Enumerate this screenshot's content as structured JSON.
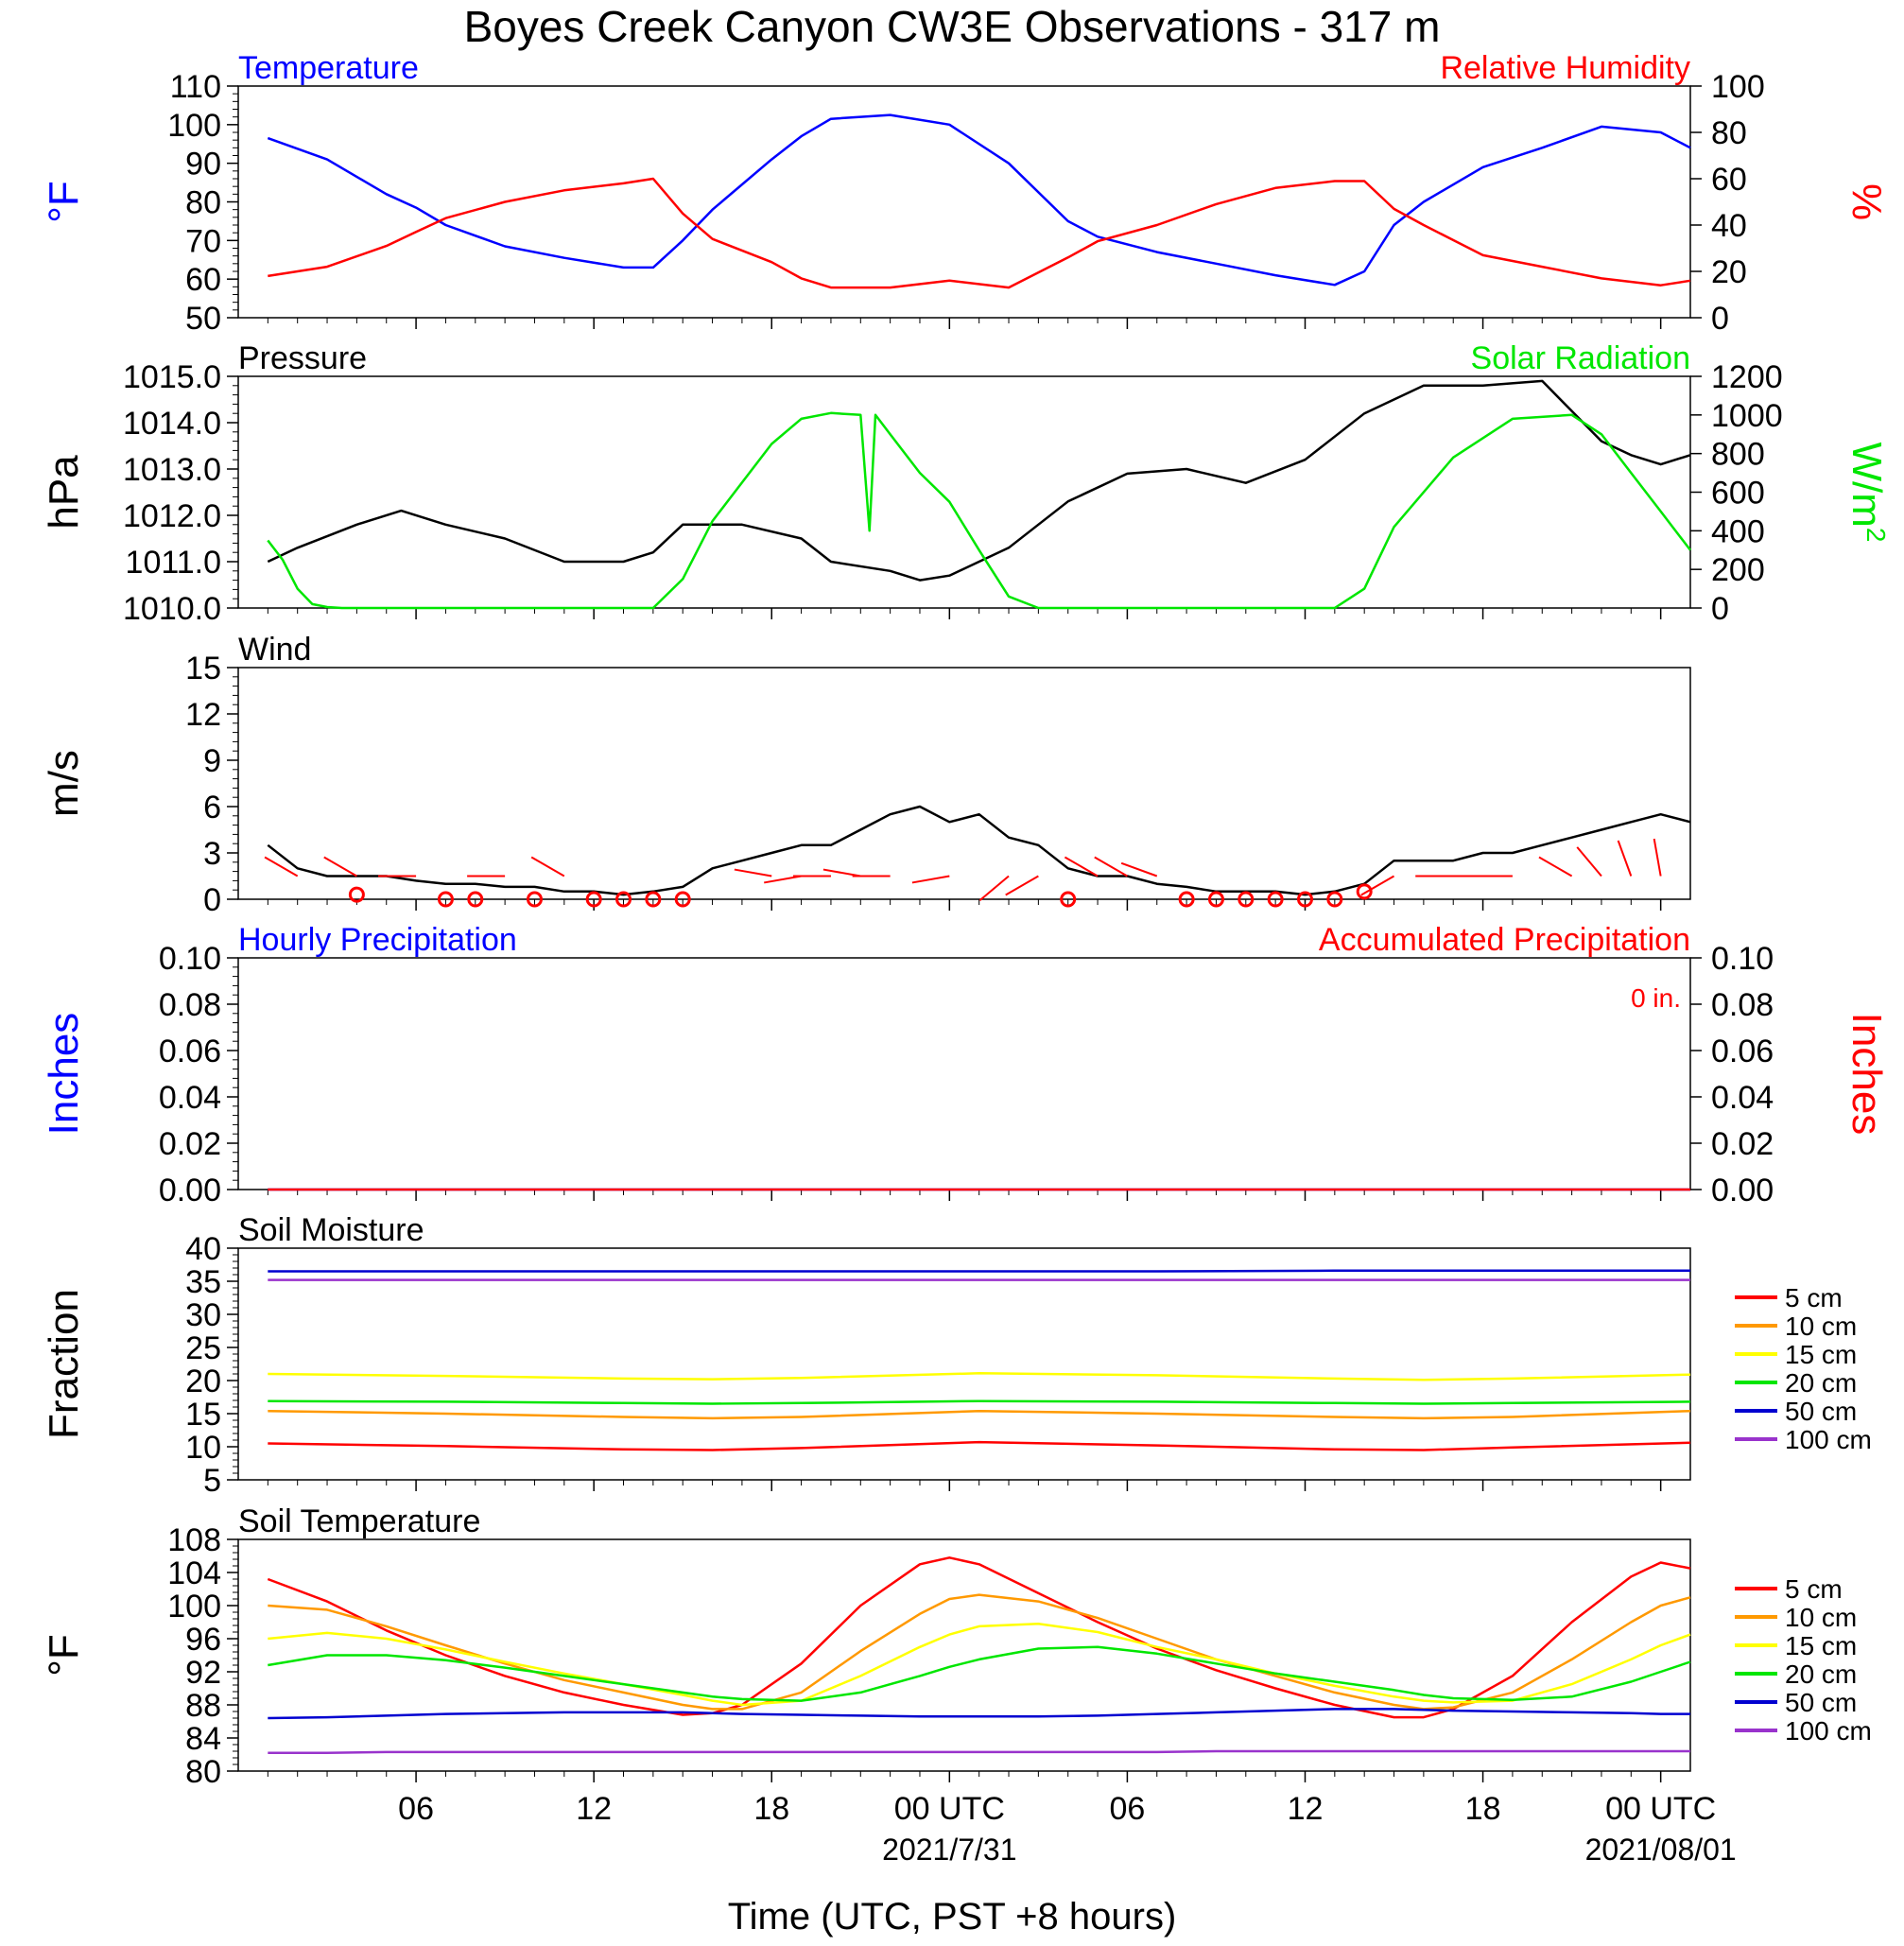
{
  "title": "Boyes Creek Canyon CW3E Observations - 317 m",
  "xlabel": "Time (UTC, PST +8 hours)",
  "x_ticks": [
    "06",
    "12",
    "18",
    "00 UTC",
    "06",
    "12",
    "18",
    "00 UTC"
  ],
  "x_dates": [
    "2021/7/31",
    "2021/08/01"
  ],
  "colors": {
    "blue": "#0000ff",
    "red": "#ff0000",
    "green": "#00e600",
    "black": "#000000",
    "orange": "#ff9900",
    "yellow": "#ffff00",
    "navy": "#0000d0",
    "purple": "#9933cc"
  },
  "chart_data": [
    {
      "id": "temp_rh",
      "type": "line",
      "title_left": "Temperature",
      "title_right": "Relative Humidity",
      "ylabel_left": "°F",
      "ylabel_right": "%",
      "ylim_left": [
        50,
        110
      ],
      "yticks_left": [
        "50",
        "60",
        "70",
        "80",
        "90",
        "100",
        "110"
      ],
      "ylim_right": [
        0,
        100
      ],
      "yticks_right": [
        "0",
        "20",
        "40",
        "60",
        "80",
        "100"
      ],
      "x_hours": [
        1,
        3,
        5,
        6,
        7,
        9,
        11,
        13,
        14,
        15,
        16,
        18,
        19,
        20,
        22,
        24,
        26,
        28,
        29,
        31,
        33,
        35,
        37,
        38,
        39,
        40,
        42,
        44,
        46,
        48,
        49
      ],
      "series": [
        {
          "name": "Temperature",
          "axis": "left",
          "color": "blue",
          "values": [
            96.5,
            91,
            82,
            78.5,
            74,
            68.5,
            65.5,
            63,
            63,
            70,
            78,
            91,
            97,
            101.5,
            102.5,
            100,
            90,
            75,
            71,
            67,
            64,
            61,
            58.5,
            62,
            74,
            80,
            89,
            94,
            99.5,
            98,
            94
          ]
        },
        {
          "name": "Relative Humidity",
          "axis": "right",
          "color": "red",
          "values": [
            18,
            22,
            31,
            37,
            43,
            50,
            55,
            58,
            60,
            45,
            34,
            24,
            17,
            13,
            13,
            16,
            13,
            26,
            33,
            40,
            49,
            56,
            59,
            59,
            47,
            40,
            27,
            22,
            17,
            14,
            16
          ]
        }
      ]
    },
    {
      "id": "pressure_solar",
      "type": "line",
      "title_left": "Pressure",
      "title_right": "Solar Radiation",
      "ylabel_left": "hPa",
      "ylabel_right": "W/m",
      "ylabel_right_sup": "2",
      "ylim_left": [
        1010,
        1015
      ],
      "yticks_left": [
        "1010.0",
        "1011.0",
        "1012.0",
        "1013.0",
        "1014.0",
        "1015.0"
      ],
      "ylim_right": [
        0,
        1200
      ],
      "yticks_right": [
        "0",
        "200",
        "400",
        "600",
        "800",
        "1000",
        "1200"
      ],
      "series": [
        {
          "name": "Pressure",
          "axis": "left",
          "color": "black",
          "x": [
            1,
            2,
            4,
            5.5,
            7,
            9,
            11,
            13,
            14,
            15,
            17,
            19,
            20,
            22,
            23,
            24,
            26,
            28,
            30,
            32,
            34,
            36,
            38,
            40,
            42,
            44,
            46,
            47,
            48,
            49
          ],
          "values": [
            1011.0,
            1011.3,
            1011.8,
            1012.1,
            1011.8,
            1011.5,
            1011.0,
            1011.0,
            1011.2,
            1011.8,
            1011.8,
            1011.5,
            1011.0,
            1010.8,
            1010.6,
            1010.7,
            1011.3,
            1012.3,
            1012.9,
            1013.0,
            1012.7,
            1013.2,
            1014.2,
            1014.8,
            1014.8,
            1014.9,
            1013.6,
            1013.3,
            1013.1,
            1013.3
          ]
        },
        {
          "name": "Solar Radiation",
          "axis": "right",
          "color": "green",
          "x": [
            1,
            1.5,
            2,
            2.5,
            3,
            3.5,
            14,
            15,
            16,
            18,
            19,
            20,
            21,
            21.3,
            21.5,
            22,
            23,
            24,
            25,
            26,
            27,
            37,
            38,
            39,
            41,
            43,
            45,
            46,
            47,
            48,
            49
          ],
          "values": [
            350,
            250,
            100,
            20,
            5,
            0,
            0,
            150,
            450,
            850,
            980,
            1010,
            1000,
            400,
            1000,
            900,
            700,
            550,
            300,
            60,
            0,
            0,
            100,
            420,
            780,
            980,
            1000,
            900,
            700,
            500,
            300
          ]
        }
      ]
    },
    {
      "id": "wind",
      "type": "line",
      "title_left": "Wind",
      "ylabel_left": "m/s",
      "ylim_left": [
        0,
        15
      ],
      "yticks_left": [
        "0",
        "3",
        "6",
        "9",
        "12",
        "15"
      ],
      "series": [
        {
          "name": "Wind",
          "axis": "left",
          "color": "black",
          "x": [
            1,
            2,
            3,
            4,
            5,
            6,
            7,
            8,
            9,
            10,
            11,
            12,
            13,
            14,
            15,
            16,
            17,
            18,
            19,
            20,
            21,
            22,
            23,
            24,
            25,
            26,
            27,
            28,
            29,
            30,
            31,
            32,
            33,
            34,
            35,
            36,
            37,
            38,
            39,
            40,
            41,
            42,
            43,
            44,
            45,
            46,
            47,
            48,
            49
          ],
          "values": [
            3.5,
            2.0,
            1.5,
            1.5,
            1.5,
            1.2,
            1.0,
            1.0,
            0.8,
            0.8,
            0.5,
            0.5,
            0.3,
            0.5,
            0.8,
            2.0,
            2.5,
            3.0,
            3.5,
            3.5,
            4.5,
            5.5,
            6.0,
            5.0,
            5.5,
            4.0,
            3.5,
            2.0,
            1.5,
            1.5,
            1.0,
            0.8,
            0.5,
            0.5,
            0.5,
            0.3,
            0.5,
            1.0,
            2.5,
            2.5,
            2.5,
            3.0,
            3.0,
            3.5,
            4.0,
            4.5,
            5.0,
            5.5,
            5.0
          ]
        },
        {
          "name": "calm",
          "type": "scatter",
          "color": "red",
          "x": [
            4,
            7,
            8,
            10,
            12,
            13,
            14,
            15,
            28,
            32,
            33,
            34,
            35,
            36,
            37,
            38
          ],
          "values": [
            0.3,
            0,
            0,
            0,
            0,
            0,
            0,
            0,
            0,
            0,
            0,
            0,
            0,
            0,
            0,
            0.5
          ]
        }
      ],
      "barbs": {
        "x": [
          2,
          4,
          6,
          9,
          11,
          18,
          19,
          20,
          21,
          22,
          24,
          26,
          27,
          29,
          30,
          31,
          39,
          41,
          42,
          43,
          45,
          46,
          47,
          48
        ],
        "dir_deg": [
          300,
          300,
          270,
          270,
          300,
          280,
          260,
          270,
          280,
          270,
          260,
          230,
          240,
          300,
          300,
          290,
          240,
          270,
          270,
          270,
          300,
          320,
          340,
          350
        ]
      }
    },
    {
      "id": "precip",
      "type": "line",
      "title_left": "Hourly Precipitation",
      "title_right": "Accumulated Precipitation",
      "annotation": "0 in.",
      "ylabel_left": "Inches",
      "ylabel_right": "Inches",
      "ylim_left": [
        0,
        0.1
      ],
      "yticks_left": [
        "0.00",
        "0.02",
        "0.04",
        "0.06",
        "0.08",
        "0.10"
      ],
      "ylim_right": [
        0,
        0.1
      ],
      "yticks_right": [
        "0.00",
        "0.02",
        "0.04",
        "0.06",
        "0.08",
        "0.10"
      ],
      "series": [
        {
          "name": "Hourly Precipitation",
          "axis": "left",
          "color": "blue",
          "x": [
            1,
            49
          ],
          "values": [
            0,
            0
          ]
        },
        {
          "name": "Accumulated Precipitation",
          "axis": "right",
          "color": "red",
          "x": [
            1,
            49
          ],
          "values": [
            0,
            0
          ]
        }
      ]
    },
    {
      "id": "soil_moisture",
      "type": "line",
      "title_left": "Soil Moisture",
      "ylabel_left": "Fraction",
      "ylim_left": [
        5,
        40
      ],
      "yticks_left": [
        "5",
        "10",
        "15",
        "20",
        "25",
        "30",
        "35",
        "40"
      ],
      "x_hours": [
        1,
        7,
        13,
        16,
        19,
        25,
        31,
        37,
        40,
        43,
        49
      ],
      "legend": [
        "5 cm",
        "10 cm",
        "15 cm",
        "20 cm",
        "50 cm",
        "100 cm"
      ],
      "series": [
        {
          "name": "5 cm",
          "color": "red",
          "values": [
            10.5,
            10.1,
            9.6,
            9.5,
            9.8,
            10.7,
            10.2,
            9.6,
            9.5,
            9.9,
            10.6
          ]
        },
        {
          "name": "10 cm",
          "color": "orange",
          "values": [
            15.4,
            15.0,
            14.5,
            14.3,
            14.5,
            15.4,
            15.0,
            14.5,
            14.3,
            14.5,
            15.4
          ]
        },
        {
          "name": "15 cm",
          "color": "yellow",
          "values": [
            21.0,
            20.7,
            20.3,
            20.2,
            20.4,
            21.1,
            20.8,
            20.3,
            20.1,
            20.3,
            20.9
          ]
        },
        {
          "name": "20 cm",
          "color": "green",
          "values": [
            16.9,
            16.8,
            16.6,
            16.5,
            16.6,
            16.9,
            16.8,
            16.6,
            16.5,
            16.6,
            16.8
          ]
        },
        {
          "name": "50 cm",
          "color": "navy",
          "values": [
            36.5,
            36.5,
            36.5,
            36.5,
            36.5,
            36.5,
            36.5,
            36.6,
            36.6,
            36.6,
            36.6
          ]
        },
        {
          "name": "100 cm",
          "color": "purple",
          "values": [
            35.2,
            35.2,
            35.2,
            35.2,
            35.2,
            35.2,
            35.2,
            35.2,
            35.2,
            35.2,
            35.2
          ]
        }
      ]
    },
    {
      "id": "soil_temp",
      "type": "line",
      "title_left": "Soil Temperature",
      "ylabel_left": "°F",
      "ylim_left": [
        80,
        108
      ],
      "yticks_left": [
        "80",
        "84",
        "88",
        "92",
        "96",
        "100",
        "104",
        "108"
      ],
      "x_hours": [
        1,
        3,
        5,
        7,
        9,
        11,
        13,
        15,
        16,
        17,
        19,
        21,
        23,
        24,
        25,
        27,
        29,
        31,
        33,
        35,
        37,
        39,
        40,
        41,
        43,
        45,
        47,
        48,
        49
      ],
      "legend": [
        "5 cm",
        "10 cm",
        "15 cm",
        "20 cm",
        "50 cm",
        "100 cm"
      ],
      "series": [
        {
          "name": "5 cm",
          "color": "red",
          "values": [
            103.2,
            100.5,
            97.0,
            94.0,
            91.5,
            89.5,
            88.0,
            86.8,
            87.0,
            88.0,
            93.0,
            100.0,
            105.0,
            105.8,
            105.0,
            101.5,
            98.0,
            94.8,
            92.2,
            90.0,
            88.0,
            86.5,
            86.5,
            87.5,
            91.5,
            98.0,
            103.5,
            105.2,
            104.5
          ]
        },
        {
          "name": "10 cm",
          "color": "orange",
          "values": [
            100.0,
            99.5,
            97.5,
            95.2,
            93.0,
            91.0,
            89.5,
            88.0,
            87.5,
            87.5,
            89.5,
            94.5,
            99.0,
            100.8,
            101.3,
            100.5,
            98.5,
            96.0,
            93.5,
            91.5,
            89.5,
            88.0,
            87.5,
            87.7,
            89.5,
            93.5,
            98.0,
            100.0,
            101.0
          ]
        },
        {
          "name": "15 cm",
          "color": "yellow",
          "values": [
            96.0,
            96.7,
            96.0,
            94.7,
            93.2,
            91.8,
            90.5,
            89.2,
            88.5,
            88.0,
            88.5,
            91.5,
            95.0,
            96.5,
            97.5,
            97.8,
            96.8,
            95.0,
            93.5,
            91.8,
            90.3,
            89.0,
            88.5,
            88.3,
            88.5,
            90.5,
            93.5,
            95.2,
            96.5
          ]
        },
        {
          "name": "20 cm",
          "color": "green",
          "values": [
            92.8,
            94.0,
            94.0,
            93.4,
            92.5,
            91.5,
            90.5,
            89.5,
            89.0,
            88.7,
            88.5,
            89.5,
            91.5,
            92.6,
            93.5,
            94.8,
            95.0,
            94.2,
            93.0,
            91.8,
            90.8,
            89.8,
            89.2,
            88.8,
            88.6,
            89.0,
            90.8,
            92.0,
            93.2
          ]
        },
        {
          "name": "50 cm",
          "color": "navy",
          "values": [
            86.4,
            86.5,
            86.7,
            86.9,
            87.0,
            87.1,
            87.1,
            87.1,
            87.0,
            86.9,
            86.8,
            86.7,
            86.6,
            86.6,
            86.6,
            86.6,
            86.7,
            86.9,
            87.1,
            87.3,
            87.5,
            87.5,
            87.4,
            87.3,
            87.2,
            87.1,
            87.0,
            86.9,
            86.9
          ]
        },
        {
          "name": "100 cm",
          "color": "purple",
          "values": [
            82.2,
            82.2,
            82.3,
            82.3,
            82.3,
            82.3,
            82.3,
            82.3,
            82.3,
            82.3,
            82.3,
            82.3,
            82.3,
            82.3,
            82.3,
            82.3,
            82.3,
            82.3,
            82.4,
            82.4,
            82.4,
            82.4,
            82.4,
            82.4,
            82.4,
            82.4,
            82.4,
            82.4,
            82.4
          ]
        }
      ]
    }
  ]
}
